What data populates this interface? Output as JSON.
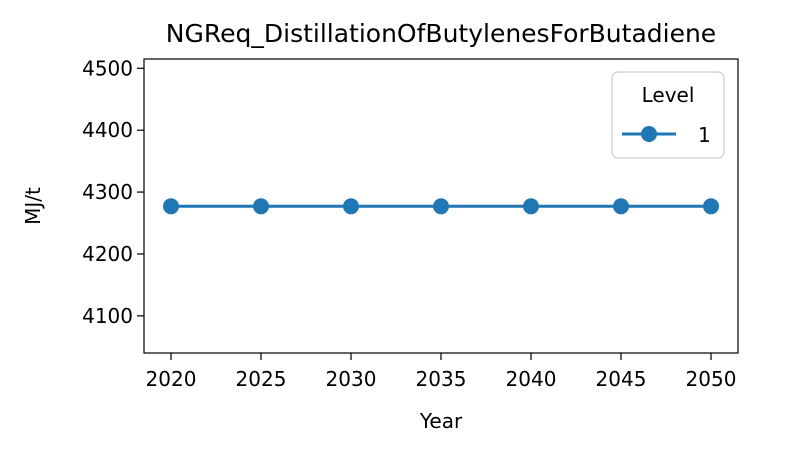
{
  "chart_data": {
    "type": "line",
    "title": "NGReq_DistillationOfButylenesForButadiene",
    "xlabel": "Year",
    "ylabel": "MJ/t",
    "x": [
      2020,
      2025,
      2030,
      2035,
      2040,
      2045,
      2050
    ],
    "x_ticks": [
      "2020",
      "2025",
      "2030",
      "2035",
      "2040",
      "2045",
      "2050"
    ],
    "y_ticks": [
      "4100",
      "4200",
      "4300",
      "4400",
      "4500"
    ],
    "xlim": [
      2018.5,
      2051.5
    ],
    "ylim": [
      4040,
      4515
    ],
    "grid": false,
    "legend": {
      "title": "Level",
      "placement": "top-right"
    },
    "series": [
      {
        "name": "1",
        "values": [
          4277,
          4277,
          4277,
          4277,
          4277,
          4277,
          4277
        ],
        "color": "#1f77b4",
        "marker": "circle"
      }
    ]
  }
}
